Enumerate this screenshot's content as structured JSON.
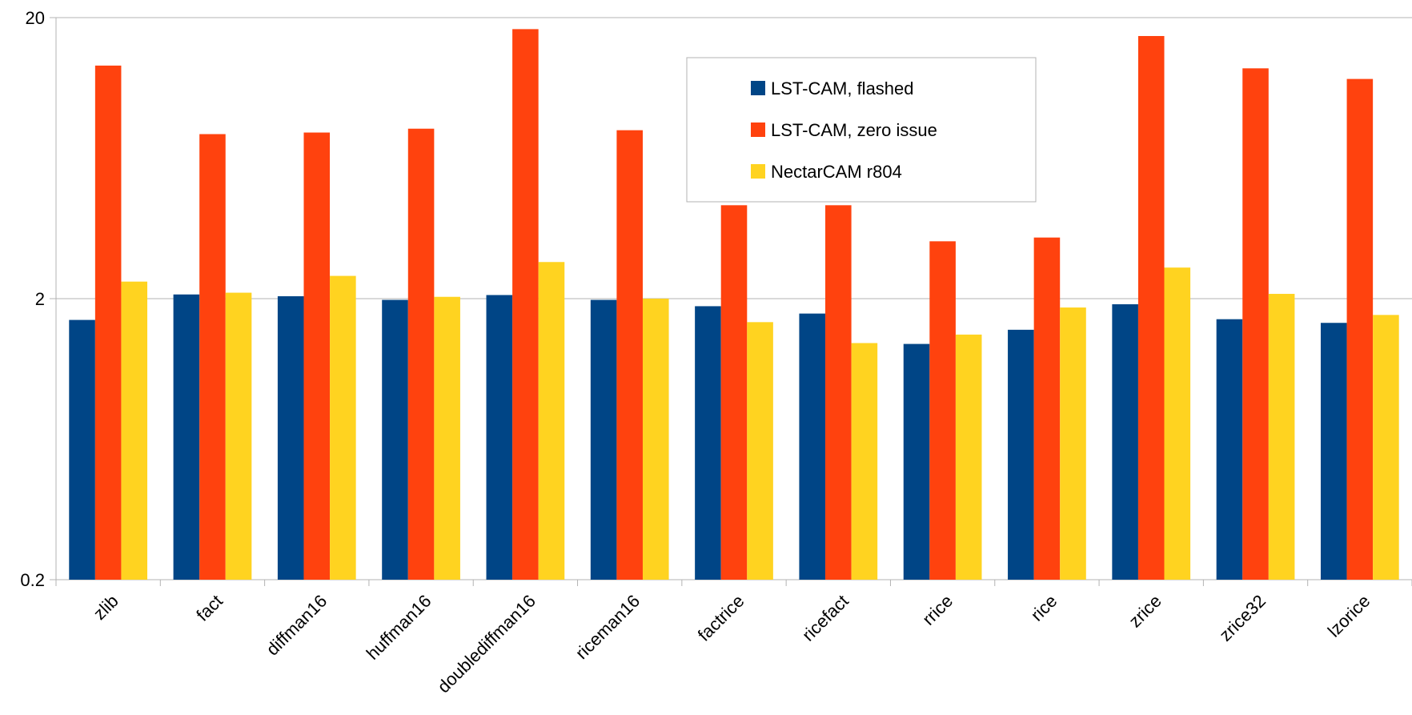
{
  "chart_data": {
    "type": "bar",
    "y_scale": "log",
    "ylim": [
      0.2,
      20
    ],
    "yticks": [
      "0.2",
      "2",
      "20"
    ],
    "grid": true,
    "legend_position": "top-center",
    "categories": [
      "zlib",
      "fact",
      "diffman16",
      "huffman16",
      "doublediffman16",
      "riceman16",
      "factrice",
      "ricefact",
      "rrice",
      "rice",
      "zrice",
      "zrice32",
      "lzorice"
    ],
    "series": [
      {
        "name": "LST-CAM, flashed",
        "color": "#004586",
        "values": [
          1.68,
          2.07,
          2.04,
          1.98,
          2.06,
          1.98,
          1.88,
          1.77,
          1.38,
          1.55,
          1.91,
          1.69,
          1.64
        ]
      },
      {
        "name": "LST-CAM, zero issue",
        "color": "#ff420e",
        "values": [
          13.5,
          7.7,
          7.8,
          8.05,
          18.2,
          7.95,
          4.3,
          4.3,
          3.2,
          3.3,
          17.2,
          13.2,
          12.1
        ]
      },
      {
        "name": "NectarCAM r804",
        "color": "#ffd320",
        "values": [
          2.3,
          2.1,
          2.41,
          2.03,
          2.7,
          2.0,
          1.65,
          1.39,
          1.49,
          1.86,
          2.58,
          2.08,
          1.75
        ]
      }
    ]
  }
}
